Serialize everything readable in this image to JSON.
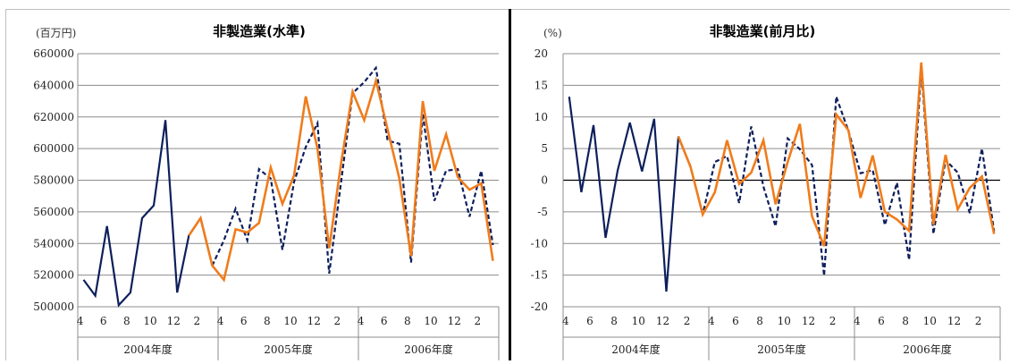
{
  "chart_data": [
    {
      "type": "line",
      "title": "非製造業(水準)",
      "unit": "(百万円)",
      "ylim": [
        500000,
        660000
      ],
      "yticks": [
        500000,
        520000,
        540000,
        560000,
        580000,
        600000,
        620000,
        640000,
        660000
      ],
      "ytick_labels": [
        "500000",
        "520000",
        "540000",
        "560000",
        "580000",
        "600000",
        "620000",
        "640000",
        "660000"
      ],
      "grid": true,
      "x_tick_labels": [
        "4",
        "",
        "6",
        "",
        "8",
        "",
        "10",
        "",
        "12",
        "",
        "2",
        "",
        "4",
        "",
        "6",
        "",
        "8",
        "",
        "10",
        "",
        "12",
        "",
        "2",
        "",
        "4",
        "",
        "6",
        "",
        "8",
        "",
        "10",
        "",
        "12",
        "",
        "2",
        ""
      ],
      "year_labels": [
        "2004年度",
        "2005年度",
        "2006年度"
      ],
      "series": [
        {
          "style": "solid-navy",
          "start": 0,
          "values": [
            517000,
            507000,
            551000,
            501000,
            509000,
            556000,
            564000,
            618000,
            509000,
            545000,
            556000,
            526000
          ]
        },
        {
          "style": "dashed-navy",
          "start": 11,
          "values": [
            526000,
            542000,
            562000,
            542000,
            587000,
            581000,
            536000,
            579000,
            601000,
            616000,
            521000,
            578000,
            635000,
            642000,
            651000,
            605000,
            603000,
            528000,
            622000,
            567000,
            586000,
            587000,
            557000,
            586000,
            539000
          ]
        },
        {
          "style": "solid-orange",
          "start": 9,
          "values": [
            545000,
            556000,
            526000,
            517000,
            549000,
            547000,
            553000,
            588000,
            565000,
            583000,
            633000,
            600000,
            537000,
            590000,
            636000,
            618000,
            643000,
            612000,
            581000,
            532000,
            630000,
            586000,
            609000,
            582000,
            574000,
            578000,
            529000
          ]
        }
      ]
    },
    {
      "type": "line",
      "title": "非製造業(前月比)",
      "unit": "(%)",
      "ylim": [
        -20,
        20
      ],
      "yticks": [
        -20,
        -15,
        -10,
        -5,
        0,
        5,
        10,
        15,
        20
      ],
      "ytick_labels": [
        "-20",
        "-15",
        "-10",
        "-5",
        "0",
        "5",
        "10",
        "15",
        "20"
      ],
      "grid": true,
      "x_tick_labels": [
        "4",
        "",
        "6",
        "",
        "8",
        "",
        "10",
        "",
        "12",
        "",
        "2",
        "",
        "4",
        "",
        "6",
        "",
        "8",
        "",
        "10",
        "",
        "12",
        "",
        "2",
        "",
        "4",
        "",
        "6",
        "",
        "8",
        "",
        "10",
        "",
        "12",
        "",
        "2",
        ""
      ],
      "year_labels": [
        "2004年度",
        "2005年度",
        "2006年度"
      ],
      "series": [
        {
          "style": "solid-navy",
          "start": 0,
          "values": [
            13.2,
            -1.9,
            8.7,
            -9.1,
            1.6,
            9.1,
            1.4,
            9.7,
            -17.6,
            6.9,
            2.1
          ]
        },
        {
          "style": "dashed-navy",
          "start": 9,
          "values": [
            6.9,
            2.1,
            -5.4,
            2.9,
            3.8,
            -3.6,
            8.5,
            -1.0,
            -7.3,
            6.6,
            4.9,
            2.4,
            -15.1,
            13.2,
            7.8,
            1.1,
            1.6,
            -7.1,
            -0.4,
            -12.6,
            17.6,
            -8.5,
            3.2,
            1.2,
            -5.2,
            5.0,
            -8.1
          ]
        },
        {
          "style": "solid-orange",
          "start": 9,
          "values": [
            6.9,
            2.1,
            -5.4,
            -1.9,
            6.3,
            -0.6,
            1.2,
            6.3,
            -3.8,
            2.9,
            8.9,
            -5.7,
            -10.4,
            10.4,
            7.9,
            -2.8,
            3.9,
            -5.0,
            -6.2,
            -8.0,
            18.6,
            -7.0,
            4.0,
            -4.6,
            -1.2,
            0.6,
            -8.5
          ]
        }
      ]
    }
  ]
}
